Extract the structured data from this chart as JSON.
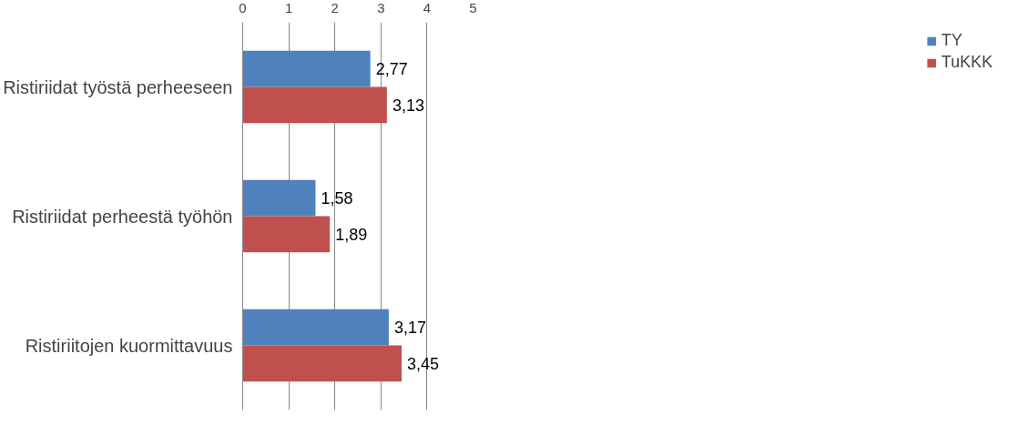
{
  "chart_data": {
    "type": "bar",
    "orientation": "horizontal",
    "categories": [
      "Ristiriidat työstä perheeseen",
      "Ristiriidat perheestä työhön",
      "Ristiriitojen kuormittavuus"
    ],
    "series": [
      {
        "name": "TY",
        "color": "#4f81bd",
        "values": [
          2.77,
          1.58,
          3.17
        ],
        "value_labels": [
          "2,77",
          "1,58",
          "3,17"
        ]
      },
      {
        "name": "TuKKK",
        "color": "#c0504d",
        "values": [
          3.13,
          1.89,
          3.45
        ],
        "value_labels": [
          "3,13",
          "1,89",
          "3,45"
        ]
      }
    ],
    "xlim": [
      0,
      5
    ],
    "xticks": [
      0,
      1,
      2,
      3,
      4,
      5
    ],
    "grid": "x",
    "legend": "right"
  }
}
